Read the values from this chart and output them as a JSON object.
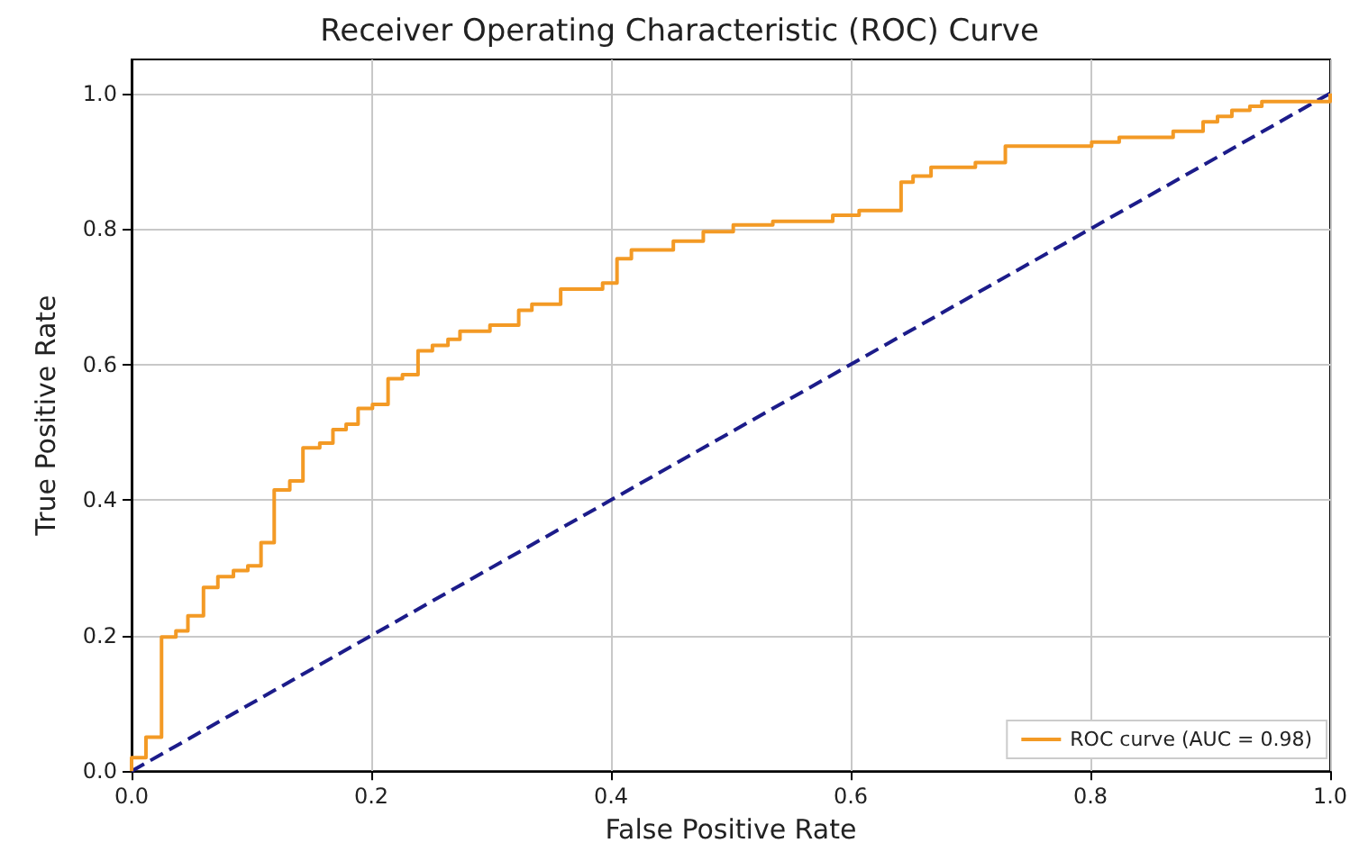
{
  "chart_data": {
    "type": "line",
    "title": "Receiver Operating Characteristic (ROC) Curve",
    "xlabel": "False Positive Rate",
    "ylabel": "True Positive Rate",
    "xlim": [
      0,
      1
    ],
    "ylim": [
      0,
      1.05
    ],
    "xticks": [
      {
        "value": 0,
        "label": "0.0"
      },
      {
        "value": 0.2,
        "label": "0.2"
      },
      {
        "value": 0.4,
        "label": "0.4"
      },
      {
        "value": 0.6,
        "label": "0.6"
      },
      {
        "value": 0.8,
        "label": "0.8"
      },
      {
        "value": 1,
        "label": "1.0"
      }
    ],
    "yticks": [
      {
        "value": 0,
        "label": "0.0"
      },
      {
        "value": 0.2,
        "label": "0.2"
      },
      {
        "value": 0.4,
        "label": "0.4"
      },
      {
        "value": 0.6,
        "label": "0.6"
      },
      {
        "value": 0.8,
        "label": "0.8"
      },
      {
        "value": 1,
        "label": "1.0"
      }
    ],
    "grid": true,
    "legend": "bottom right",
    "marker": "none",
    "series": [
      {
        "name": "ROC curve (AUC = 0.98)",
        "type": "step",
        "color": "#f39a25",
        "line_style": "solid",
        "x": [
          0,
          0,
          0.012,
          0.025,
          0.037,
          0.047,
          0.06,
          0.072,
          0.085,
          0.097,
          0.108,
          0.119,
          0.132,
          0.143,
          0.157,
          0.168,
          0.179,
          0.189,
          0.201,
          0.214,
          0.226,
          0.239,
          0.251,
          0.264,
          0.274,
          0.299,
          0.323,
          0.334,
          0.358,
          0.393,
          0.405,
          0.417,
          0.452,
          0.477,
          0.502,
          0.535,
          0.585,
          0.607,
          0.642,
          0.652,
          0.667,
          0.704,
          0.729,
          0.801,
          0.824,
          0.869,
          0.894,
          0.906,
          0.918,
          0.933,
          0.943,
          1
        ],
        "values": [
          0,
          0.02,
          0.05,
          0.198,
          0.207,
          0.229,
          0.271,
          0.287,
          0.296,
          0.303,
          0.337,
          0.415,
          0.428,
          0.477,
          0.484,
          0.504,
          0.512,
          0.535,
          0.541,
          0.579,
          0.585,
          0.62,
          0.628,
          0.637,
          0.649,
          0.658,
          0.68,
          0.689,
          0.711,
          0.72,
          0.756,
          0.769,
          0.782,
          0.796,
          0.806,
          0.811,
          0.82,
          0.827,
          0.869,
          0.878,
          0.891,
          0.898,
          0.922,
          0.928,
          0.935,
          0.944,
          0.958,
          0.966,
          0.975,
          0.981,
          0.988,
          1
        ]
      },
      {
        "color": "#1c1c8a",
        "line_style": "dashed",
        "x": [
          0,
          1
        ],
        "values": [
          0,
          1
        ]
      }
    ]
  }
}
